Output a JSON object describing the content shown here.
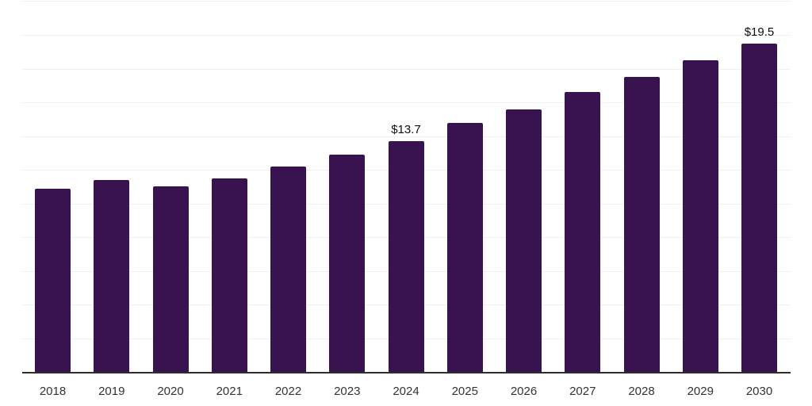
{
  "chart_data": {
    "type": "bar",
    "title": "",
    "xlabel": "",
    "ylabel": "",
    "categories": [
      "2018",
      "2019",
      "2020",
      "2021",
      "2022",
      "2023",
      "2024",
      "2025",
      "2026",
      "2027",
      "2028",
      "2029",
      "2030"
    ],
    "values": [
      10.9,
      11.4,
      11.0,
      11.5,
      12.2,
      12.9,
      13.7,
      14.8,
      15.6,
      16.6,
      17.5,
      18.5,
      19.5
    ],
    "annotations": [
      {
        "category": "2024",
        "text": "$13.7"
      },
      {
        "category": "2030",
        "text": "$19.5"
      }
    ],
    "ylim": [
      0,
      22
    ],
    "gridline_step": 2,
    "grid": true,
    "legend": false,
    "colors": {
      "bar": "#38134f",
      "gridline": "#efefef",
      "axis_line": "#2e2e2e",
      "tick_label": "#333333",
      "value_label": "#0d0d0d",
      "background": "#ffffff"
    }
  }
}
